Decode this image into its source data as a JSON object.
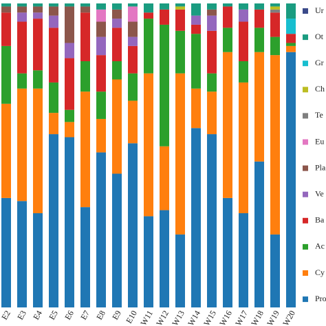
{
  "chart_data": {
    "type": "stacked_bar",
    "categories": [
      "E2",
      "E3",
      "E4",
      "E5",
      "E6",
      "E7",
      "E8",
      "E9",
      "E10",
      "W11",
      "W12",
      "W13",
      "W14",
      "W15",
      "W16",
      "W17",
      "W18",
      "W19",
      "W20"
    ],
    "ylim": [
      0,
      100
    ],
    "series": [
      {
        "name": "Pro",
        "color": "#1f77b4",
        "values": [
          36,
          35,
          31,
          57,
          56,
          33,
          51,
          44,
          54,
          30,
          32,
          24,
          59,
          57,
          36,
          31,
          48,
          24,
          84
        ]
      },
      {
        "name": "Cy",
        "color": "#ff7f0e",
        "values": [
          31,
          37,
          41,
          7,
          5,
          38,
          11,
          31,
          14,
          47,
          21,
          53,
          13,
          14,
          48,
          43,
          36,
          59,
          2
        ]
      },
      {
        "name": "Ac",
        "color": "#2ca02c",
        "values": [
          19,
          5,
          6,
          10,
          4,
          10,
          9,
          6,
          9,
          18,
          40,
          14,
          18,
          6,
          8,
          7,
          8,
          6,
          1
        ]
      },
      {
        "name": "Ba",
        "color": "#d62728",
        "values": [
          11,
          17,
          17,
          18,
          17,
          16,
          12,
          11,
          9,
          2,
          5,
          7,
          3,
          14,
          7,
          13,
          6,
          8,
          3
        ]
      },
      {
        "name": "Ve",
        "color": "#9467bd",
        "values": [
          0,
          3,
          2,
          4,
          5,
          0,
          6,
          3,
          3,
          0,
          0,
          0,
          3,
          5,
          0,
          4,
          0,
          0,
          0
        ]
      },
      {
        "name": "Pla",
        "color": "#8c564b",
        "values": [
          2,
          2,
          2,
          3,
          12,
          2,
          5,
          3,
          5,
          0,
          0,
          0,
          0,
          2,
          0,
          0,
          0,
          0,
          0
        ]
      },
      {
        "name": "Eu",
        "color": "#e377c2",
        "values": [
          0,
          0,
          0,
          0,
          0,
          0,
          4,
          0,
          5,
          0,
          0,
          0,
          0,
          0,
          0,
          0,
          0,
          0,
          0
        ]
      },
      {
        "name": "Te",
        "color": "#7f7f7f",
        "values": [
          0,
          0,
          0,
          0,
          0,
          0,
          0,
          0,
          0,
          0,
          0,
          0,
          0,
          0,
          0,
          0,
          0,
          1,
          0
        ]
      },
      {
        "name": "Ch",
        "color": "#bcbd22",
        "values": [
          0,
          0,
          0,
          0,
          0,
          0,
          0,
          0,
          0,
          0,
          0,
          1,
          0,
          0,
          0,
          0,
          0,
          1,
          0
        ]
      },
      {
        "name": "Gr",
        "color": "#17becf",
        "values": [
          0,
          0,
          0,
          0,
          0,
          0,
          0,
          0,
          0,
          0,
          0,
          0,
          0,
          0,
          0,
          0,
          0,
          0,
          5
        ]
      },
      {
        "name": "Ot",
        "color": "#1a9c80",
        "values": [
          1,
          1,
          1,
          1,
          1,
          1,
          2,
          2,
          1,
          3,
          2,
          1,
          4,
          2,
          1,
          2,
          2,
          1,
          5
        ]
      },
      {
        "name": "Ur",
        "color": "#3b4a8a",
        "values": [
          0,
          0,
          0,
          0,
          0,
          0,
          0,
          0,
          0,
          0,
          0,
          0,
          0,
          0,
          0,
          0,
          0,
          0,
          0
        ]
      }
    ]
  }
}
